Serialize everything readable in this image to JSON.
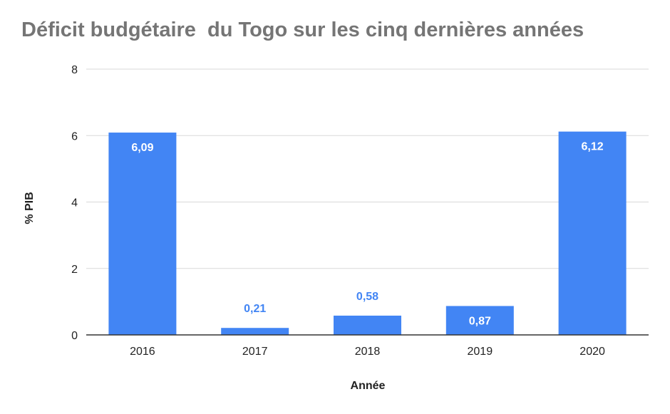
{
  "chart_data": {
    "type": "bar",
    "title": "Déficit budgétaire  du Togo sur les cinq dernières années",
    "xlabel": "Année",
    "ylabel": "% PIB",
    "categories": [
      "2016",
      "2017",
      "2018",
      "2019",
      "2020"
    ],
    "series": [
      {
        "values": [
          6.09,
          0.21,
          0.58,
          0.87,
          6.12
        ]
      }
    ],
    "data_labels": [
      "6,09",
      "0,21",
      "0,58",
      "0,87",
      "6,12"
    ],
    "ylim": [
      0,
      8
    ],
    "yticks": [
      0,
      2,
      4,
      6,
      8
    ],
    "grid": true,
    "legend": "none",
    "colors": {
      "bar": "#4285F4",
      "label_inside": "#ffffff",
      "label_outside": "#4285F4",
      "grid": "#d9d9d9",
      "baseline": "#333333"
    }
  }
}
